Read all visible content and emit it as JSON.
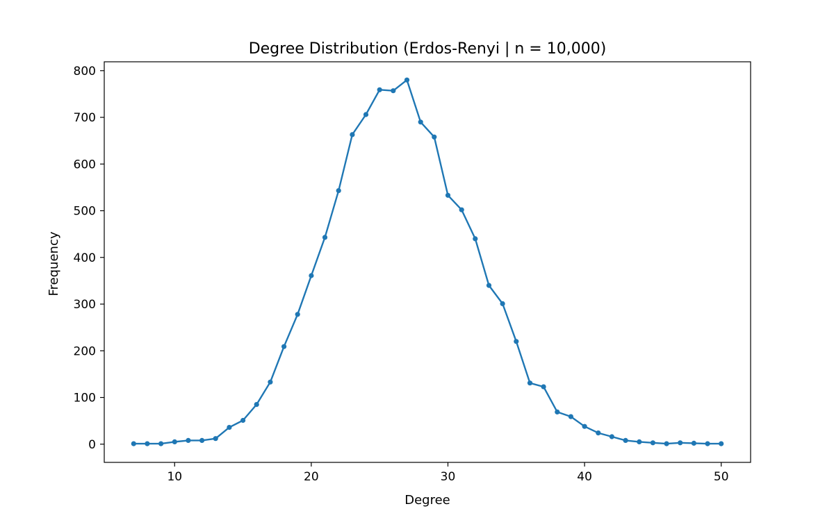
{
  "chart_data": {
    "type": "line",
    "title": "Degree Distribution (Erdos-Renyi | n = 10,000)",
    "xlabel": "Degree",
    "ylabel": "Frequency",
    "xlim": [
      4.85,
      52.15
    ],
    "ylim": [
      -39,
      819
    ],
    "xticks": [
      10,
      20,
      30,
      40,
      50
    ],
    "yticks": [
      0,
      100,
      200,
      300,
      400,
      500,
      600,
      700,
      800
    ],
    "grid": false,
    "legend": "none",
    "colors": {
      "line": "#1f77b4",
      "axes": "#000000",
      "background": "#ffffff"
    },
    "series": [
      {
        "x": [
          7,
          8,
          9,
          10,
          11,
          12,
          13,
          14,
          15,
          16,
          17,
          18,
          19,
          20,
          21,
          22,
          23,
          24,
          25,
          26,
          27,
          28,
          29,
          30,
          31,
          32,
          33,
          34,
          35,
          36,
          37,
          38,
          39,
          40,
          41,
          42,
          43,
          44,
          45,
          46,
          47,
          48,
          49,
          50
        ],
        "y": [
          1,
          1,
          1,
          5,
          8,
          8,
          12,
          36,
          51,
          85,
          133,
          209,
          278,
          361,
          443,
          543,
          663,
          706,
          759,
          757,
          780,
          690,
          658,
          533,
          502,
          440,
          340,
          301,
          220,
          131,
          123,
          69,
          59,
          38,
          24,
          16,
          8,
          5,
          3,
          1,
          3,
          2,
          1,
          1
        ]
      }
    ]
  }
}
